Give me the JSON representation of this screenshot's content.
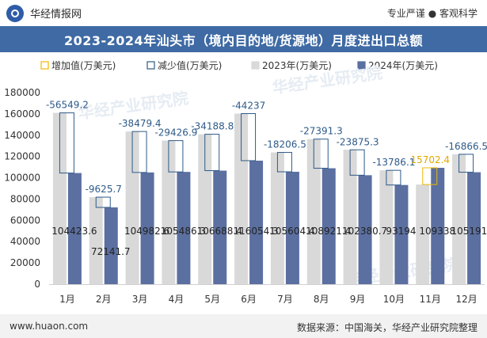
{
  "header": {
    "brand_name": "华经情报网",
    "slogan": "专业严谨 ● 客观科学"
  },
  "title": "2023-2024年汕头市（境内目的地/货源地）月度进出口总额",
  "footer": {
    "website": "www.huaon.com",
    "source": "数据来源：中国海关，华经产业研究院整理"
  },
  "watermark": "华经产业研究院",
  "colors": {
    "increase": "#f2b800",
    "decrease": "#2e5a88",
    "series_2023": "#d9d9d9",
    "series_2024": "#5b6fa0",
    "title_bar": "#3f6aa4"
  },
  "chart_data": {
    "type": "bar",
    "categories": [
      "1月",
      "2月",
      "3月",
      "4月",
      "5月",
      "6月",
      "7月",
      "8月",
      "9月",
      "10月",
      "11月",
      "12月"
    ],
    "series": [
      {
        "name": "2023年(万美元)",
        "values": [
          160972.8,
          81767.4,
          143462.0,
          134913.2,
          140877.2,
          160291.3,
          123811.0,
          136312.7,
          126256.0,
          106980.2,
          93635.6,
          122058.3
        ]
      },
      {
        "name": "2024年(万美元)",
        "values": [
          104423.6,
          72141.7,
          104982.6,
          105486.3,
          106688.4,
          116054.3,
          105604.4,
          108921.4,
          102380.7,
          93194,
          109338,
          105191.8
        ]
      }
    ],
    "difference": [
      {
        "month": "1月",
        "type": "decrease",
        "label": "-56549.2"
      },
      {
        "month": "2月",
        "type": "decrease",
        "label": "-9625.7"
      },
      {
        "month": "3月",
        "type": "decrease",
        "label": "-38479.4"
      },
      {
        "month": "4月",
        "type": "decrease",
        "label": "-29426.9"
      },
      {
        "month": "5月",
        "type": "decrease",
        "label": "-34188.8"
      },
      {
        "month": "6月",
        "type": "decrease",
        "label": "-44237"
      },
      {
        "month": "7月",
        "type": "decrease",
        "label": "-18206.5"
      },
      {
        "month": "8月",
        "type": "decrease",
        "label": "-27391.3"
      },
      {
        "month": "9月",
        "type": "decrease",
        "label": "-23875.3"
      },
      {
        "month": "10月",
        "type": "decrease",
        "label": "-13786.1"
      },
      {
        "month": "11月",
        "type": "increase",
        "label": "15702.4"
      },
      {
        "month": "12月",
        "type": "decrease",
        "label": "-16866.5"
      }
    ],
    "legend": [
      {
        "key": "increase",
        "label": "增加值(万美元)"
      },
      {
        "key": "decrease",
        "label": "减少值(万美元)"
      },
      {
        "key": "series_2023",
        "label": "2023年(万美元)"
      },
      {
        "key": "series_2024",
        "label": "2024年(万美元)"
      }
    ],
    "ylim": [
      0,
      180000
    ],
    "yticks": [
      0,
      20000,
      40000,
      60000,
      80000,
      100000,
      120000,
      140000,
      160000,
      180000
    ],
    "ytick_labels": [
      "0",
      "20000",
      "40000",
      "60000",
      "80000",
      "100000",
      "120000",
      "140000",
      "160000",
      "180000"
    ],
    "legend_position": "top",
    "grid": false
  }
}
